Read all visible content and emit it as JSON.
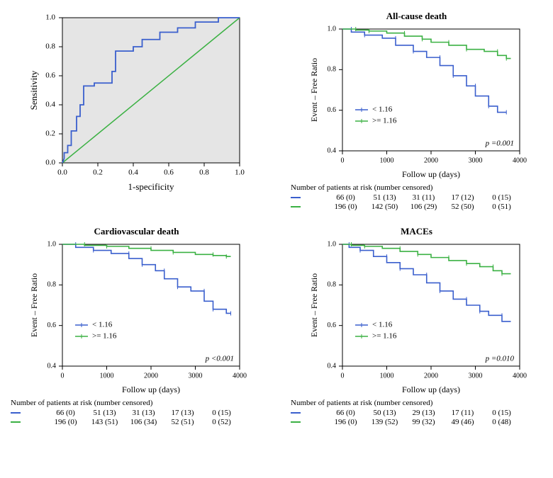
{
  "colors": {
    "blue": "#3a5fcd",
    "green": "#3bb143",
    "plot_bg_roc": "#e5e5e5",
    "axis": "#000000",
    "white": "#ffffff"
  },
  "roc": {
    "xlabel": "1-specificity",
    "ylabel": "Sensitivity",
    "xlim": [
      0,
      1
    ],
    "ylim": [
      0,
      1
    ],
    "xticks": [
      0,
      0.2,
      0.4,
      0.6,
      0.8,
      1.0
    ],
    "yticks": [
      0,
      0.2,
      0.4,
      0.6,
      0.8,
      1.0
    ],
    "diag": [
      [
        0,
        0
      ],
      [
        1,
        1
      ]
    ],
    "curve": [
      [
        0.0,
        0.0
      ],
      [
        0.01,
        0.03
      ],
      [
        0.01,
        0.07
      ],
      [
        0.03,
        0.07
      ],
      [
        0.03,
        0.12
      ],
      [
        0.05,
        0.12
      ],
      [
        0.05,
        0.22
      ],
      [
        0.08,
        0.22
      ],
      [
        0.08,
        0.32
      ],
      [
        0.1,
        0.32
      ],
      [
        0.1,
        0.4
      ],
      [
        0.12,
        0.4
      ],
      [
        0.12,
        0.53
      ],
      [
        0.18,
        0.53
      ],
      [
        0.18,
        0.55
      ],
      [
        0.28,
        0.55
      ],
      [
        0.28,
        0.63
      ],
      [
        0.3,
        0.63
      ],
      [
        0.3,
        0.77
      ],
      [
        0.4,
        0.77
      ],
      [
        0.4,
        0.8
      ],
      [
        0.45,
        0.8
      ],
      [
        0.45,
        0.85
      ],
      [
        0.55,
        0.85
      ],
      [
        0.55,
        0.9
      ],
      [
        0.65,
        0.9
      ],
      [
        0.65,
        0.93
      ],
      [
        0.75,
        0.93
      ],
      [
        0.75,
        0.97
      ],
      [
        0.88,
        0.97
      ],
      [
        0.88,
        1.0
      ],
      [
        1.0,
        1.0
      ]
    ]
  },
  "km_panels": [
    {
      "title": "All-cause death",
      "xlabel": "Follow up (days)",
      "ylabel": "Event – Free Ratio",
      "xlim": [
        0,
        4000
      ],
      "ylim": [
        0.4,
        1.0
      ],
      "xticks": [
        0,
        1000,
        2000,
        3000,
        4000
      ],
      "yticks": [
        0.4,
        0.6,
        0.8,
        1.0
      ],
      "p_text": "p =0.001",
      "legend": [
        "< 1.16",
        ">= 1.16"
      ],
      "series": [
        {
          "color": "blue",
          "points": [
            [
              0,
              1.0
            ],
            [
              200,
              1.0
            ],
            [
              200,
              0.985
            ],
            [
              500,
              0.985
            ],
            [
              500,
              0.97
            ],
            [
              900,
              0.97
            ],
            [
              900,
              0.955
            ],
            [
              1200,
              0.955
            ],
            [
              1200,
              0.92
            ],
            [
              1600,
              0.92
            ],
            [
              1600,
              0.89
            ],
            [
              1900,
              0.89
            ],
            [
              1900,
              0.86
            ],
            [
              2200,
              0.86
            ],
            [
              2200,
              0.82
            ],
            [
              2500,
              0.82
            ],
            [
              2500,
              0.77
            ],
            [
              2800,
              0.77
            ],
            [
              2800,
              0.72
            ],
            [
              3000,
              0.72
            ],
            [
              3000,
              0.67
            ],
            [
              3300,
              0.67
            ],
            [
              3300,
              0.62
            ],
            [
              3500,
              0.62
            ],
            [
              3500,
              0.59
            ],
            [
              3700,
              0.59
            ]
          ]
        },
        {
          "color": "green",
          "points": [
            [
              0,
              1.0
            ],
            [
              300,
              1.0
            ],
            [
              300,
              0.995
            ],
            [
              600,
              0.995
            ],
            [
              600,
              0.99
            ],
            [
              1000,
              0.99
            ],
            [
              1000,
              0.98
            ],
            [
              1400,
              0.98
            ],
            [
              1400,
              0.965
            ],
            [
              1800,
              0.965
            ],
            [
              1800,
              0.95
            ],
            [
              2000,
              0.95
            ],
            [
              2000,
              0.935
            ],
            [
              2400,
              0.935
            ],
            [
              2400,
              0.92
            ],
            [
              2800,
              0.92
            ],
            [
              2800,
              0.9
            ],
            [
              3200,
              0.9
            ],
            [
              3200,
              0.89
            ],
            [
              3500,
              0.89
            ],
            [
              3500,
              0.87
            ],
            [
              3700,
              0.87
            ],
            [
              3700,
              0.855
            ],
            [
              3800,
              0.855
            ]
          ]
        }
      ],
      "risk_title": "Number of patients at risk (number censored)",
      "risk": [
        {
          "color": "blue",
          "cells": [
            "66 (0)",
            "51 (13)",
            "31 (11)",
            "17 (12)",
            "0 (15)"
          ]
        },
        {
          "color": "green",
          "cells": [
            "196 (0)",
            "142 (50)",
            "106 (29)",
            "52 (50)",
            "0 (51)"
          ]
        }
      ]
    },
    {
      "title": "Cardiovascular death",
      "xlabel": "Follow up (days)",
      "ylabel": "Event – Free Ratio",
      "xlim": [
        0,
        4000
      ],
      "ylim": [
        0.4,
        1.0
      ],
      "xticks": [
        0,
        1000,
        2000,
        3000,
        4000
      ],
      "yticks": [
        0.4,
        0.6,
        0.8,
        1.0
      ],
      "p_text": "p <0.001",
      "legend": [
        "< 1.16",
        ">= 1.16"
      ],
      "series": [
        {
          "color": "blue",
          "points": [
            [
              0,
              1.0
            ],
            [
              300,
              1.0
            ],
            [
              300,
              0.985
            ],
            [
              700,
              0.985
            ],
            [
              700,
              0.97
            ],
            [
              1100,
              0.97
            ],
            [
              1100,
              0.955
            ],
            [
              1500,
              0.955
            ],
            [
              1500,
              0.93
            ],
            [
              1800,
              0.93
            ],
            [
              1800,
              0.9
            ],
            [
              2100,
              0.9
            ],
            [
              2100,
              0.87
            ],
            [
              2300,
              0.87
            ],
            [
              2300,
              0.83
            ],
            [
              2600,
              0.83
            ],
            [
              2600,
              0.79
            ],
            [
              2900,
              0.79
            ],
            [
              2900,
              0.77
            ],
            [
              3200,
              0.77
            ],
            [
              3200,
              0.72
            ],
            [
              3400,
              0.72
            ],
            [
              3400,
              0.68
            ],
            [
              3700,
              0.68
            ],
            [
              3700,
              0.66
            ],
            [
              3800,
              0.66
            ]
          ]
        },
        {
          "color": "green",
          "points": [
            [
              0,
              1.0
            ],
            [
              500,
              1.0
            ],
            [
              500,
              0.995
            ],
            [
              1000,
              0.995
            ],
            [
              1000,
              0.99
            ],
            [
              1500,
              0.99
            ],
            [
              1500,
              0.98
            ],
            [
              2000,
              0.98
            ],
            [
              2000,
              0.97
            ],
            [
              2500,
              0.97
            ],
            [
              2500,
              0.96
            ],
            [
              3000,
              0.96
            ],
            [
              3000,
              0.95
            ],
            [
              3400,
              0.95
            ],
            [
              3400,
              0.945
            ],
            [
              3700,
              0.945
            ],
            [
              3700,
              0.94
            ],
            [
              3800,
              0.94
            ]
          ]
        }
      ],
      "risk_title": "Number of patients at risk (number censored)",
      "risk": [
        {
          "color": "blue",
          "cells": [
            "66 (0)",
            "51 (13)",
            "31 (13)",
            "17 (13)",
            "0 (15)"
          ]
        },
        {
          "color": "green",
          "cells": [
            "196 (0)",
            "143 (51)",
            "106 (34)",
            "52 (51)",
            "0 (52)"
          ]
        }
      ]
    },
    {
      "title": "MACEs",
      "xlabel": "Follow up (days)",
      "ylabel": "Event – Free Ratio",
      "xlim": [
        0,
        4000
      ],
      "ylim": [
        0.4,
        1.0
      ],
      "xticks": [
        0,
        1000,
        2000,
        3000,
        4000
      ],
      "yticks": [
        0.4,
        0.6,
        0.8,
        1.0
      ],
      "p_text": "p =0.010",
      "legend": [
        "< 1.16",
        ">= 1.16"
      ],
      "series": [
        {
          "color": "blue",
          "points": [
            [
              0,
              1.0
            ],
            [
              150,
              1.0
            ],
            [
              150,
              0.985
            ],
            [
              400,
              0.985
            ],
            [
              400,
              0.97
            ],
            [
              700,
              0.97
            ],
            [
              700,
              0.94
            ],
            [
              1000,
              0.94
            ],
            [
              1000,
              0.91
            ],
            [
              1300,
              0.91
            ],
            [
              1300,
              0.88
            ],
            [
              1600,
              0.88
            ],
            [
              1600,
              0.85
            ],
            [
              1900,
              0.85
            ],
            [
              1900,
              0.81
            ],
            [
              2200,
              0.81
            ],
            [
              2200,
              0.77
            ],
            [
              2500,
              0.77
            ],
            [
              2500,
              0.73
            ],
            [
              2800,
              0.73
            ],
            [
              2800,
              0.7
            ],
            [
              3100,
              0.7
            ],
            [
              3100,
              0.67
            ],
            [
              3300,
              0.67
            ],
            [
              3300,
              0.65
            ],
            [
              3600,
              0.65
            ],
            [
              3600,
              0.62
            ],
            [
              3800,
              0.62
            ]
          ]
        },
        {
          "color": "green",
          "points": [
            [
              0,
              1.0
            ],
            [
              200,
              1.0
            ],
            [
              200,
              0.995
            ],
            [
              500,
              0.995
            ],
            [
              500,
              0.99
            ],
            [
              900,
              0.99
            ],
            [
              900,
              0.98
            ],
            [
              1300,
              0.98
            ],
            [
              1300,
              0.965
            ],
            [
              1700,
              0.965
            ],
            [
              1700,
              0.95
            ],
            [
              2000,
              0.95
            ],
            [
              2000,
              0.935
            ],
            [
              2400,
              0.935
            ],
            [
              2400,
              0.92
            ],
            [
              2800,
              0.92
            ],
            [
              2800,
              0.905
            ],
            [
              3100,
              0.905
            ],
            [
              3100,
              0.89
            ],
            [
              3400,
              0.89
            ],
            [
              3400,
              0.87
            ],
            [
              3600,
              0.87
            ],
            [
              3600,
              0.855
            ],
            [
              3800,
              0.855
            ]
          ]
        }
      ],
      "risk_title": "Number of patients at risk (number censored)",
      "risk": [
        {
          "color": "blue",
          "cells": [
            "66 (0)",
            "50 (13)",
            "29 (13)",
            "17 (11)",
            "0 (15)"
          ]
        },
        {
          "color": "green",
          "cells": [
            "196 (0)",
            "139 (52)",
            "99 (32)",
            "49 (46)",
            "0 (48)"
          ]
        }
      ]
    }
  ]
}
